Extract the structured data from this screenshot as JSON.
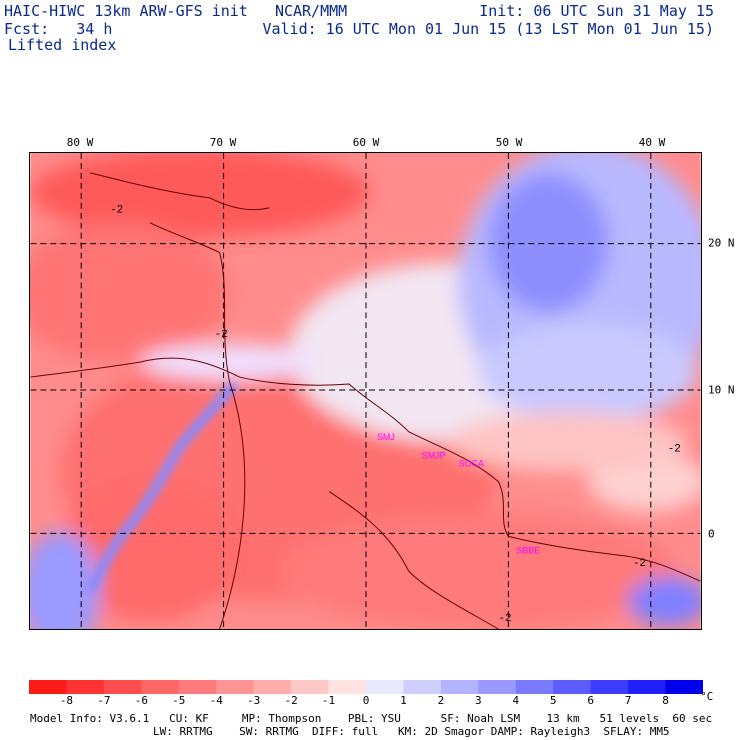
{
  "header": {
    "model": "HAIC-HIWC 13km ARW-GFS init",
    "org": "NCAR/MMM",
    "fcst_label": "Fcst:",
    "fcst_value": "34 h",
    "init": "Init: 06 UTC Sun 31 May 15",
    "valid": "Valid: 16 UTC Mon 01 Jun 15 (13 LST Mon 01 Jun 15)",
    "field": "Lifted index"
  },
  "map": {
    "lon_labels": [
      "80 W",
      "70 W",
      "60 W",
      "50 W",
      "40 W"
    ],
    "lat_labels": [
      "20 N",
      "10 N",
      "0"
    ],
    "stations": [
      "SMJ",
      "SMJP",
      "SOCA",
      "SBBE"
    ],
    "station_color": "#ff00ff",
    "contour_labels": [
      "-2",
      "-2",
      "-2",
      "-2",
      "-2"
    ]
  },
  "colorbar": {
    "levels": [
      "-8",
      "-7",
      "-6",
      "-5",
      "-4",
      "-3",
      "-2",
      "-1",
      "0",
      "1",
      "2",
      "3",
      "4",
      "5",
      "6",
      "7",
      "8"
    ],
    "colors": [
      "#ff1a1a",
      "#ff3333",
      "#ff4d4d",
      "#ff6666",
      "#ff7a7a",
      "#ff9494",
      "#ffadad",
      "#ffc7c7",
      "#ffe3e3",
      "#e8e8ff",
      "#cfcfff",
      "#b3b3ff",
      "#9999ff",
      "#7a7aff",
      "#5c5cff",
      "#3d3dff",
      "#1f1fff",
      "#0000ee"
    ],
    "unit": "°C"
  },
  "footer": {
    "line1": "Model Info: V3.6.1   CU: KF     MP: Thompson    PBL: YSU      SF: Noah LSM    13 km   51 levels  60 sec",
    "line2": "LW: RRTMG    SW: RRTMG  DIFF: full   KM: 2D Smagor DAMP: Rayleigh3  SFLAY: MM5"
  }
}
